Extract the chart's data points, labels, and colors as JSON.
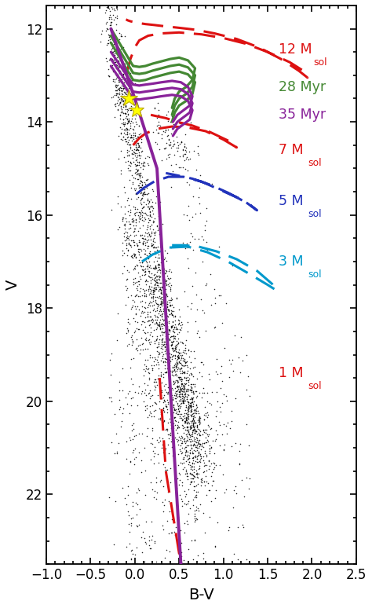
{
  "xlabel": "B-V",
  "ylabel": "V",
  "xlim": [
    -1.0,
    2.5
  ],
  "ylim": [
    23.5,
    11.5
  ],
  "xticks": [
    -1.0,
    -0.5,
    0.0,
    0.5,
    1.0,
    1.5,
    2.0,
    2.5
  ],
  "yticks": [
    12,
    14,
    16,
    18,
    20,
    22
  ],
  "bg_color": "#ffffff",
  "red": "#dd1111",
  "green": "#448833",
  "purple": "#882299",
  "blue": "#2233bb",
  "cyan": "#0099cc",
  "star1_bv": -0.07,
  "star1_v": 13.5,
  "star2_bv": 0.02,
  "star2_v": 13.75,
  "ann_12msol_x": 1.62,
  "ann_12msol_y": 12.45,
  "ann_28myr_x": 1.62,
  "ann_28myr_y": 13.25,
  "ann_35myr_x": 1.62,
  "ann_35myr_y": 13.85,
  "ann_7msol_x": 1.62,
  "ann_7msol_y": 14.6,
  "ann_5msol_x": 1.62,
  "ann_5msol_y": 15.7,
  "ann_3msol_x": 1.62,
  "ann_3msol_y": 17.0,
  "ann_1msol_x": 1.62,
  "ann_1msol_y": 19.4
}
